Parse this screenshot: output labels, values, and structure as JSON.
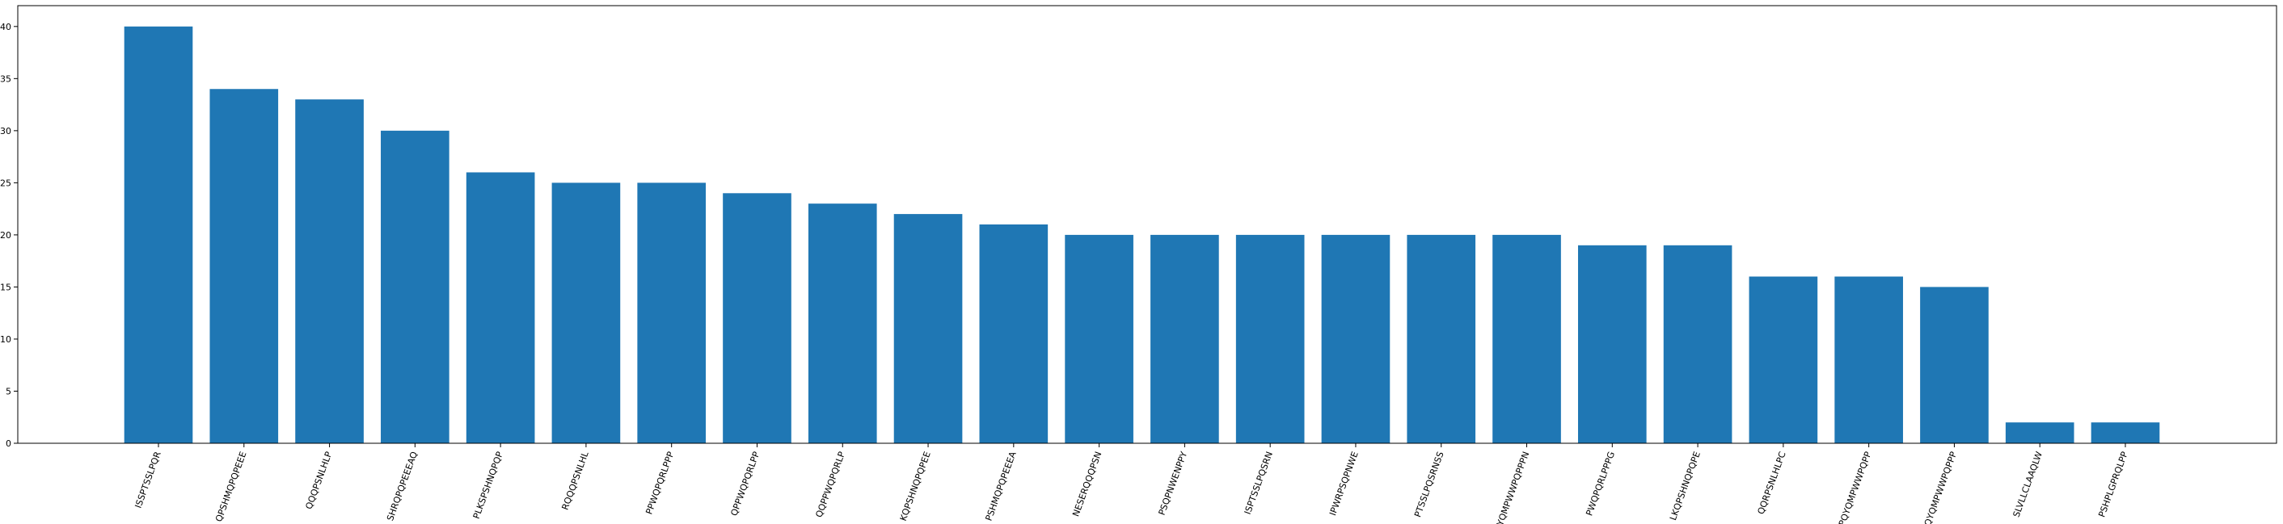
{
  "chart_data": {
    "type": "bar",
    "title": "",
    "xlabel": "",
    "ylabel": "",
    "categories": [
      "ISSPTSSLPQR",
      "QPSHMQPQPEEE",
      "QQQPSNLHLP",
      "SHRQPQPEEEAQ",
      "PLKSPSHNQPQP",
      "RQQQPSNLHL",
      "PPWQPQRLPPP",
      "QPPWQPQRLPP",
      "QQPPWQPQRLP",
      "KQPSHNQPQPEE",
      "PSHMQPQPEEEA",
      "NESERQQQPSN",
      "PSQPNWENPPY",
      "ISPTSSLPQSRN",
      "IPWRPSQPNWE",
      "PTSSLPQSRNSS",
      "YQMPWWPQPPPN",
      "PWQPQRLPPPG",
      "LKQPSHNQPQPE",
      "QQRPSNLHLPC",
      "PQYQMPWWPQPP",
      "QYQMPWWPQPPP",
      "SLVLLCLAAQLW",
      "PSHPLGPRQLPP"
    ],
    "values": [
      40,
      34,
      33,
      30,
      26,
      25,
      25,
      24,
      23,
      22,
      21,
      20,
      20,
      20,
      20,
      20,
      20,
      19,
      19,
      16,
      16,
      15,
      2,
      2
    ],
    "ylim": [
      0,
      42
    ],
    "yticks": [
      0,
      5,
      10,
      15,
      20,
      25,
      30,
      35,
      40
    ],
    "bar_color": "#1f77b4",
    "grid": false,
    "legend": "none"
  }
}
